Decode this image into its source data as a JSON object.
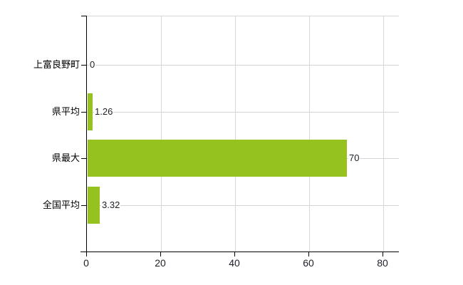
{
  "chart_data": {
    "type": "bar",
    "orientation": "horizontal",
    "title": "",
    "xlabel": "",
    "ylabel": "",
    "categories": [
      "上富良野町",
      "県平均",
      "県最大",
      "全国平均"
    ],
    "values": [
      0,
      1.26,
      70,
      3.32
    ],
    "value_labels": [
      "0",
      "1.26",
      "70",
      "3.32"
    ],
    "x_ticks": [
      0,
      20,
      40,
      60,
      80
    ],
    "x_tick_labels": [
      "0",
      "20",
      "40",
      "60",
      "80"
    ],
    "xlim": [
      0,
      84
    ],
    "grid": true,
    "legend": false,
    "bar_color": "#95c21f",
    "gridline_color": "#d8d8d8",
    "axis_color": "#000000",
    "label_color": "#000000",
    "value_label_color": "#1e1e28",
    "background_color": "#ffffff"
  }
}
